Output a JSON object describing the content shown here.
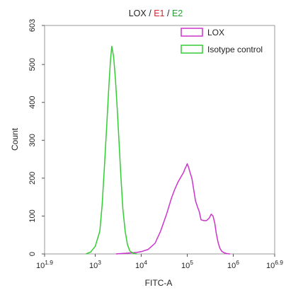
{
  "chart_data": {
    "type": "line",
    "title_parts": [
      {
        "text": "LOX",
        "color": "#222222"
      },
      {
        "text": "/",
        "color": "#222222"
      },
      {
        "text": "E1",
        "color": "#d6262c"
      },
      {
        "text": "/",
        "color": "#222222"
      },
      {
        "text": "E2",
        "color": "#2a9d3a"
      }
    ],
    "xlabel": "FITC-A",
    "ylabel": "Count",
    "x_scale": "log10",
    "xlim": [
      1.9,
      6.9
    ],
    "ylim": [
      0,
      603
    ],
    "x_ticks": [
      {
        "base": "10",
        "exp": "1.9",
        "value": 1.9
      },
      {
        "base": "10",
        "exp": "3",
        "value": 3
      },
      {
        "base": "10",
        "exp": "4",
        "value": 4
      },
      {
        "base": "10",
        "exp": "5",
        "value": 5
      },
      {
        "base": "10",
        "exp": "6",
        "value": 6
      },
      {
        "base": "10",
        "exp": "6.9",
        "value": 6.9
      }
    ],
    "y_ticks": [
      {
        "label": "0",
        "value": 0
      },
      {
        "label": "100",
        "value": 100
      },
      {
        "label": "200",
        "value": 200
      },
      {
        "label": "300",
        "value": 300
      },
      {
        "label": "400",
        "value": 400
      },
      {
        "label": "500",
        "value": 500
      },
      {
        "label": "603",
        "value": 603
      }
    ],
    "legend_position": "top-right",
    "series": [
      {
        "name": "LOX",
        "color": "#cc33cc",
        "x": [
          3.45,
          3.7,
          3.9,
          4.0,
          4.15,
          4.3,
          4.42,
          4.55,
          4.65,
          4.72,
          4.8,
          4.87,
          4.92,
          4.95,
          4.98,
          5.0,
          5.03,
          5.06,
          5.1,
          5.14,
          5.18,
          5.22,
          5.26,
          5.3,
          5.36,
          5.42,
          5.48,
          5.52,
          5.56,
          5.6,
          5.63,
          5.67,
          5.71,
          5.75,
          5.8,
          5.86,
          5.93
        ],
        "y": [
          0,
          2,
          4,
          6,
          12,
          28,
          60,
          105,
          145,
          168,
          190,
          205,
          215,
          225,
          232,
          238,
          228,
          215,
          200,
          170,
          140,
          125,
          112,
          90,
          88,
          88,
          95,
          105,
          100,
          80,
          55,
          30,
          15,
          7,
          3,
          1,
          0
        ]
      },
      {
        "name": "Isotype control",
        "color": "#33cc33",
        "x": [
          2.8,
          2.9,
          3.0,
          3.1,
          3.15,
          3.2,
          3.25,
          3.3,
          3.33,
          3.36,
          3.4,
          3.44,
          3.48,
          3.52,
          3.56,
          3.6,
          3.65,
          3.7,
          3.75,
          3.82,
          3.9
        ],
        "y": [
          0,
          5,
          20,
          60,
          130,
          230,
          340,
          450,
          510,
          548,
          520,
          460,
          380,
          290,
          200,
          120,
          60,
          25,
          8,
          2,
          0
        ]
      }
    ]
  }
}
